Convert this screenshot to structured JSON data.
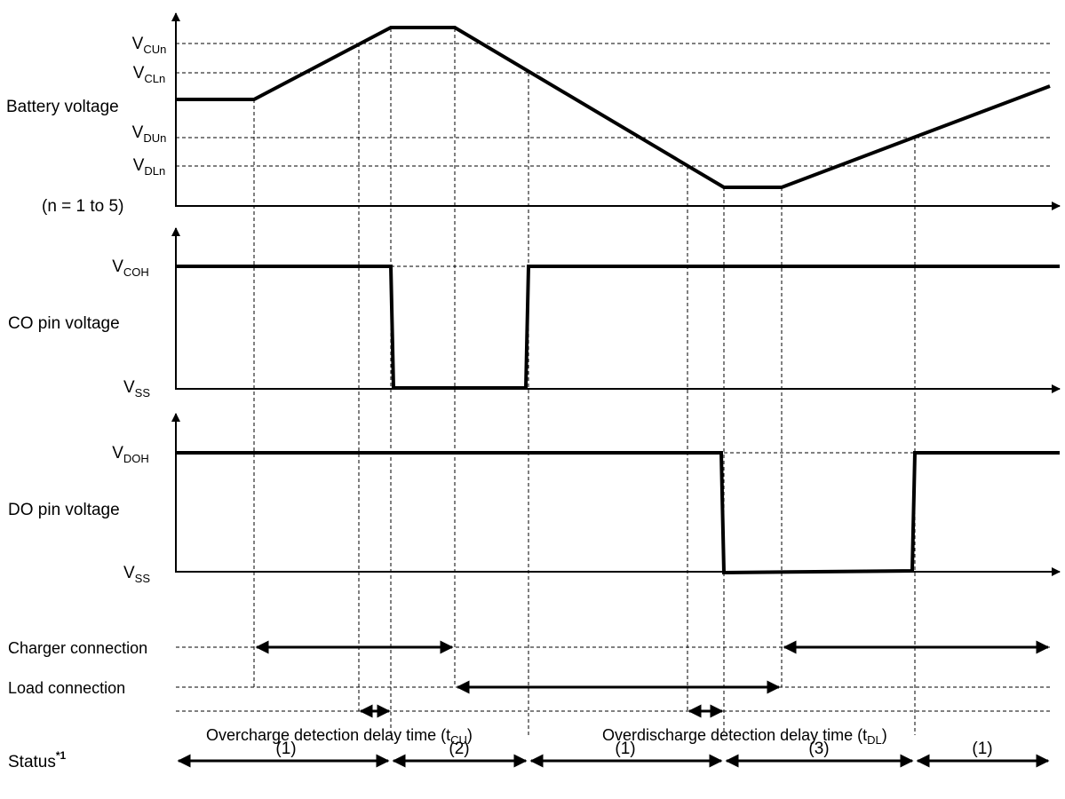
{
  "battery": {
    "label": "Battery voltage",
    "note": "(n = 1 to 5)",
    "levels": [
      {
        "main": "V",
        "sub": "CUn"
      },
      {
        "main": "V",
        "sub": "CLn"
      },
      {
        "main": "V",
        "sub": "DUn"
      },
      {
        "main": "V",
        "sub": "DLn"
      }
    ]
  },
  "co": {
    "label": "CO pin voltage",
    "high": {
      "main": "V",
      "sub": "COH"
    },
    "low": {
      "main": "V",
      "sub": "SS"
    }
  },
  "do": {
    "label": "DO pin voltage",
    "high": {
      "main": "V",
      "sub": "DOH"
    },
    "low": {
      "main": "V",
      "sub": "SS"
    }
  },
  "rows": {
    "charger": "Charger connection",
    "load": "Load connection"
  },
  "delays": {
    "overcharge": {
      "text": "Overcharge detection delay time (t",
      "sub": "CU",
      "close": ")"
    },
    "overdischarge": {
      "text": "Overdischarge detection delay time (t",
      "sub": "DL",
      "close": ")"
    }
  },
  "status": {
    "label": "Status",
    "sup": "*1",
    "segments": [
      "(1)",
      "(2)",
      "(1)",
      "(3)",
      "(1)"
    ]
  },
  "colors": {
    "line": "#000000",
    "background": "#ffffff"
  }
}
